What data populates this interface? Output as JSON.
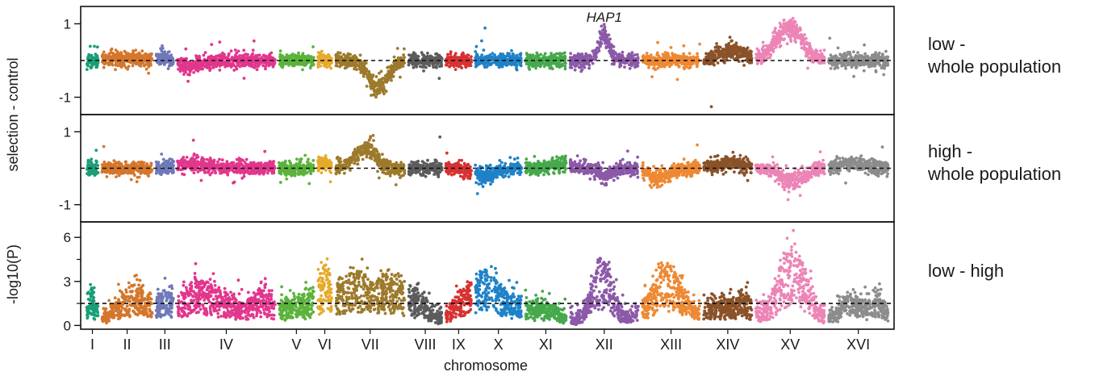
{
  "chart_data": {
    "type": "scatter",
    "xlabel": "chromosome",
    "shared_ylabel": "selection - control",
    "annotation": "HAP1",
    "chromosomes": [
      {
        "name": "I",
        "start": 0,
        "end": 2.3,
        "color": "#1a9e77"
      },
      {
        "name": "II",
        "start": 2.3,
        "end": 10.4,
        "color": "#d4772c"
      },
      {
        "name": "III",
        "start": 10.4,
        "end": 13.6,
        "color": "#6f79b8"
      },
      {
        "name": "IV",
        "start": 13.6,
        "end": 28.8,
        "color": "#e2368d"
      },
      {
        "name": "V",
        "start": 28.8,
        "end": 34.6,
        "color": "#5bb33c"
      },
      {
        "name": "VI",
        "start": 34.6,
        "end": 37.3,
        "color": "#e6aa2c"
      },
      {
        "name": "VII",
        "start": 37.3,
        "end": 48.2,
        "color": "#9d7a2b"
      },
      {
        "name": "VIII",
        "start": 48.2,
        "end": 53.8,
        "color": "#5c5c5c"
      },
      {
        "name": "IX",
        "start": 53.8,
        "end": 58.2,
        "color": "#d63232"
      },
      {
        "name": "X",
        "start": 58.2,
        "end": 65.7,
        "color": "#1f82c8"
      },
      {
        "name": "XI",
        "start": 65.7,
        "end": 72.4,
        "color": "#46a94b"
      },
      {
        "name": "XII",
        "start": 72.4,
        "end": 83.2,
        "color": "#8c59a8"
      },
      {
        "name": "XIII",
        "start": 83.2,
        "end": 92.4,
        "color": "#ee8933"
      },
      {
        "name": "XIV",
        "start": 92.4,
        "end": 100.2,
        "color": "#8a5229"
      },
      {
        "name": "XV",
        "start": 100.2,
        "end": 111.1,
        "color": "#ec85b6"
      },
      {
        "name": "XVI",
        "start": 111.1,
        "end": 120.6,
        "color": "#8c8c8c"
      }
    ],
    "panels": [
      {
        "id": "low_whole",
        "side_label": [
          "low -",
          "whole population"
        ],
        "yticks": [
          {
            "v": 1,
            "label": "1"
          },
          {
            "v": -1,
            "label": "-1"
          }
        ],
        "ylim": [
          -1.45,
          1.45
        ],
        "threshold": 0,
        "noise": 0.09,
        "features": [
          {
            "x": 6,
            "h": 0.06,
            "w": 2.5
          },
          {
            "x": 12,
            "h": 0.08,
            "w": 1.2
          },
          {
            "x": 16,
            "h": -0.15,
            "w": 2
          },
          {
            "x": 44,
            "h": -0.75,
            "w": 1.4
          },
          {
            "x": 77.8,
            "h": 0.7,
            "w": 0.8
          },
          {
            "x": 97,
            "h": 0.25,
            "w": 2
          },
          {
            "x": 106,
            "h": 0.75,
            "w": 1.7
          },
          {
            "x": 104,
            "h": 0.3,
            "w": 1.5
          }
        ]
      },
      {
        "id": "high_whole",
        "side_label": [
          "high -",
          "whole population"
        ],
        "yticks": [
          {
            "v": 1,
            "label": "1"
          },
          {
            "v": -1,
            "label": "-1"
          }
        ],
        "ylim": [
          -1.45,
          1.45
        ],
        "threshold": 0,
        "noise": 0.09,
        "features": [
          {
            "x": 16,
            "h": 0.12,
            "w": 2.5
          },
          {
            "x": 36,
            "h": 0.15,
            "w": 1.2
          },
          {
            "x": 42,
            "h": 0.55,
            "w": 1.5
          },
          {
            "x": 60,
            "h": -0.2,
            "w": 1.5
          },
          {
            "x": 71,
            "h": 0.12,
            "w": 1.5
          },
          {
            "x": 78,
            "h": -0.2,
            "w": 1.2
          },
          {
            "x": 86,
            "h": -0.28,
            "w": 1.5
          },
          {
            "x": 97,
            "h": 0.15,
            "w": 2
          },
          {
            "x": 106,
            "h": -0.35,
            "w": 1.8
          },
          {
            "x": 115,
            "h": 0.12,
            "w": 2
          }
        ]
      },
      {
        "id": "low_high",
        "side_label": [
          "low - high"
        ],
        "ylabel": "-log10(P)",
        "yticks": [
          {
            "v": 0,
            "label": "0"
          },
          {
            "v": 3,
            "label": "3"
          },
          {
            "v": 6,
            "label": "6"
          }
        ],
        "ylim": [
          -0.2,
          7.0
        ],
        "threshold": 1.5,
        "features": [
          {
            "x": 1,
            "h": 2,
            "w": 0.6
          },
          {
            "x": 7.5,
            "h": 2.2,
            "w": 2.5
          },
          {
            "x": 12,
            "h": 1.2,
            "w": 1
          },
          {
            "x": 17,
            "h": 2.5,
            "w": 2.5
          },
          {
            "x": 22,
            "h": 1.2,
            "w": 2
          },
          {
            "x": 26.5,
            "h": 1.8,
            "w": 1.5
          },
          {
            "x": 32,
            "h": 1.5,
            "w": 2.5
          },
          {
            "x": 36,
            "h": 2.5,
            "w": 1.2
          },
          {
            "x": 40.5,
            "h": 3.2,
            "w": 2.2
          },
          {
            "x": 46,
            "h": 2.8,
            "w": 2
          },
          {
            "x": 50,
            "h": 1.5,
            "w": 1.5
          },
          {
            "x": 56,
            "h": 1,
            "w": 1.5
          },
          {
            "x": 60,
            "h": 3.3,
            "w": 2.2
          },
          {
            "x": 65,
            "h": 1.2,
            "w": 1.5
          },
          {
            "x": 69,
            "h": 1.1,
            "w": 2
          },
          {
            "x": 77.5,
            "h": 4,
            "w": 1.5
          },
          {
            "x": 87,
            "h": 3.5,
            "w": 2.5
          },
          {
            "x": 95,
            "h": 1.4,
            "w": 2
          },
          {
            "x": 99,
            "h": 1.5,
            "w": 1.2
          },
          {
            "x": 106,
            "h": 4.5,
            "w": 2.2
          },
          {
            "x": 115,
            "h": 1.8,
            "w": 1.8
          },
          {
            "x": 119,
            "h": 1.5,
            "w": 1.2
          }
        ]
      }
    ]
  }
}
